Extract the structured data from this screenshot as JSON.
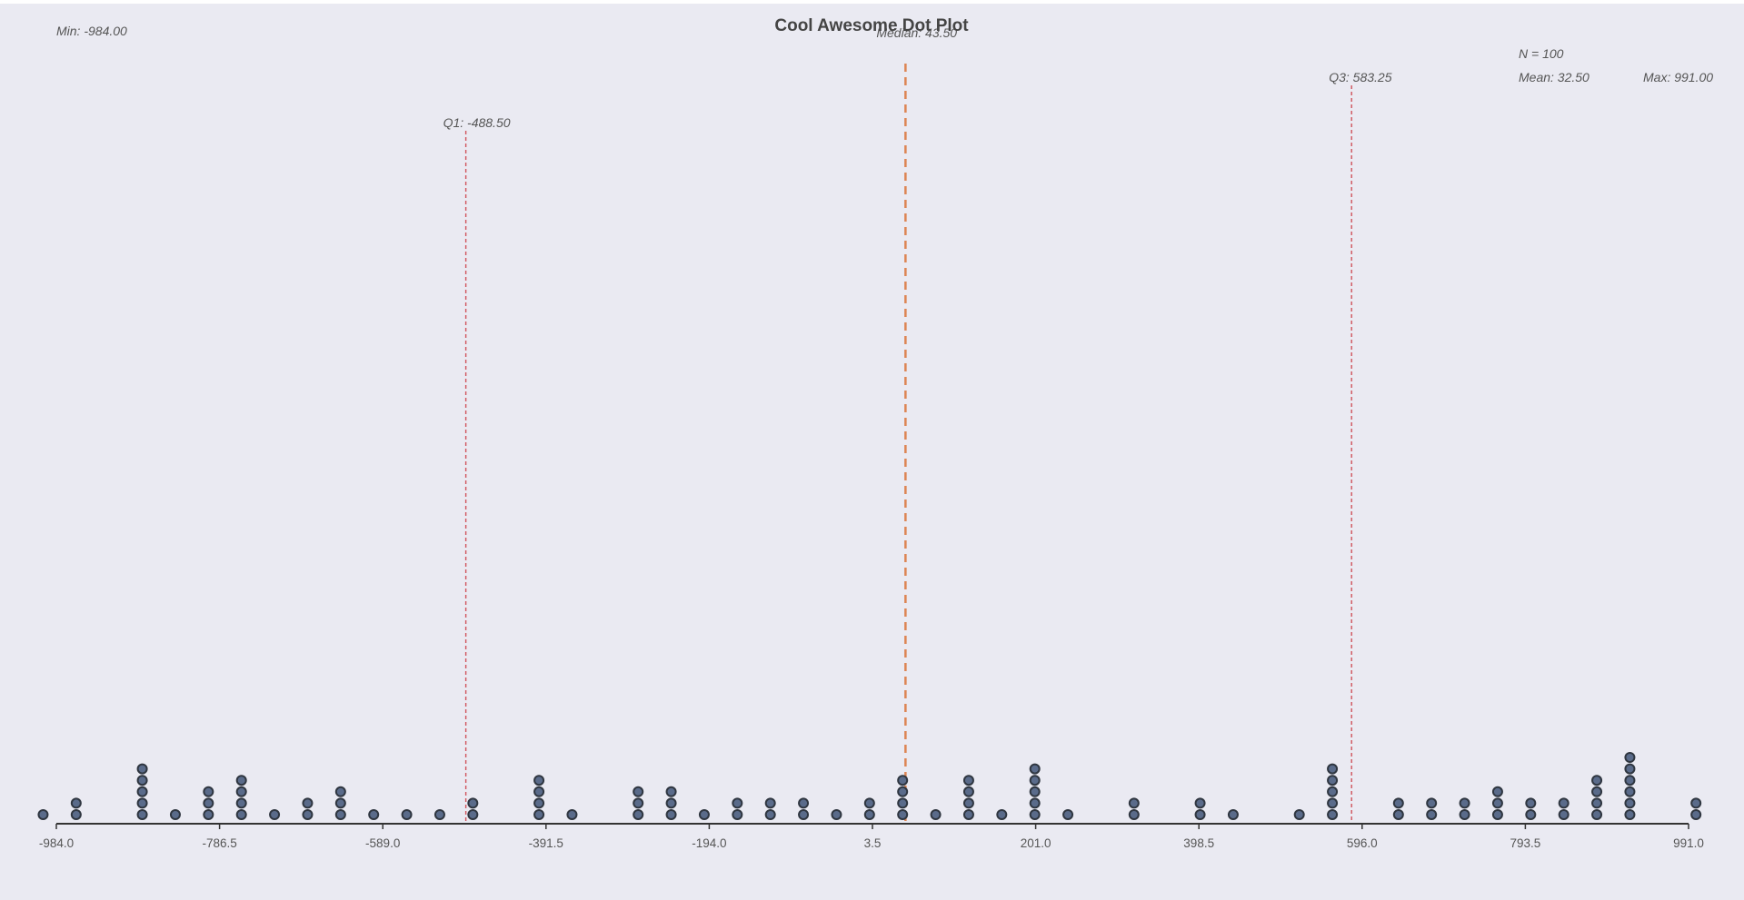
{
  "chart_data": {
    "type": "scatter",
    "subtype": "dot plot",
    "title": "Cool Awesome Dot Plot",
    "xlabel": "",
    "ylabel": "",
    "xlim": [
      -984,
      991
    ],
    "grid": false,
    "legend": "none",
    "x_ticks": [
      -984.0,
      -786.5,
      -589.0,
      -391.5,
      -194.0,
      3.5,
      201.0,
      398.5,
      596.0,
      793.5,
      991.0
    ],
    "x_tick_labels": [
      "-984.0",
      "-786.5",
      "-589.0",
      "-391.5",
      "-194.0",
      "3.5",
      "201.0",
      "398.5",
      "596.0",
      "793.5",
      "991.0"
    ],
    "bins": [
      {
        "x": -1000,
        "count": 1
      },
      {
        "x": -960,
        "count": 2
      },
      {
        "x": -880,
        "count": 5
      },
      {
        "x": -840,
        "count": 1
      },
      {
        "x": -800,
        "count": 3
      },
      {
        "x": -760,
        "count": 4
      },
      {
        "x": -720,
        "count": 1
      },
      {
        "x": -680,
        "count": 2
      },
      {
        "x": -640,
        "count": 3
      },
      {
        "x": -600,
        "count": 1
      },
      {
        "x": -560,
        "count": 1
      },
      {
        "x": -520,
        "count": 1
      },
      {
        "x": -480,
        "count": 2
      },
      {
        "x": -400,
        "count": 4
      },
      {
        "x": -360,
        "count": 1
      },
      {
        "x": -280,
        "count": 3
      },
      {
        "x": -240,
        "count": 3
      },
      {
        "x": -200,
        "count": 1
      },
      {
        "x": -160,
        "count": 2
      },
      {
        "x": -120,
        "count": 2
      },
      {
        "x": -80,
        "count": 2
      },
      {
        "x": -40,
        "count": 1
      },
      {
        "x": 0,
        "count": 2
      },
      {
        "x": 40,
        "count": 4
      },
      {
        "x": 80,
        "count": 1
      },
      {
        "x": 120,
        "count": 4
      },
      {
        "x": 160,
        "count": 1
      },
      {
        "x": 200,
        "count": 5
      },
      {
        "x": 240,
        "count": 1
      },
      {
        "x": 320,
        "count": 2
      },
      {
        "x": 400,
        "count": 2
      },
      {
        "x": 440,
        "count": 1
      },
      {
        "x": 520,
        "count": 1
      },
      {
        "x": 560,
        "count": 5
      },
      {
        "x": 640,
        "count": 2
      },
      {
        "x": 680,
        "count": 2
      },
      {
        "x": 720,
        "count": 2
      },
      {
        "x": 760,
        "count": 3
      },
      {
        "x": 800,
        "count": 2
      },
      {
        "x": 840,
        "count": 2
      },
      {
        "x": 880,
        "count": 4
      },
      {
        "x": 920,
        "count": 6
      },
      {
        "x": 1000,
        "count": 2
      }
    ],
    "reference_lines": [
      {
        "kind": "median",
        "value": 43.5,
        "label": "Median: 43.50",
        "color": "#dd8452",
        "dash": "long"
      },
      {
        "kind": "q1",
        "value": -488.5,
        "label": "Q1: -488.50",
        "color": "#d0525a",
        "dash": "short"
      },
      {
        "kind": "q3",
        "value": 583.25,
        "label": "Q3: 583.25",
        "color": "#d0525a",
        "dash": "short"
      }
    ],
    "stats": {
      "min": "Min: -984.00",
      "n": "N = 100",
      "mean": "Mean: 32.50",
      "max": "Max: 991.00"
    },
    "colors": {
      "background": "#eaeaf2",
      "dot_fill": "#5a6b8a",
      "dot_edge": "#2f3640",
      "axis": "#333333"
    }
  }
}
